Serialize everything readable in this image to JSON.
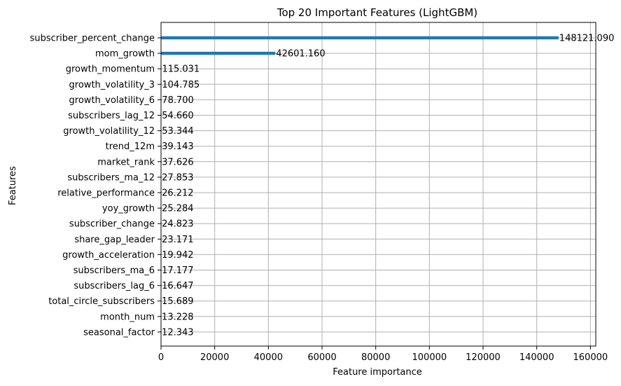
{
  "chart_data": {
    "type": "bar",
    "orientation": "horizontal",
    "title": "Top 20 Important Features (LightGBM)",
    "xlabel": "Feature importance",
    "ylabel": "Features",
    "xlim": [
      0,
      162000
    ],
    "xticks": [
      0,
      20000,
      40000,
      60000,
      80000,
      100000,
      120000,
      140000,
      160000
    ],
    "grid": true,
    "bar_color": "#1f77b4",
    "categories": [
      "subscriber_percent_change",
      "mom_growth",
      "growth_momentum",
      "growth_volatility_3",
      "growth_volatility_6",
      "subscribers_lag_12",
      "growth_volatility_12",
      "trend_12m",
      "market_rank",
      "subscribers_ma_12",
      "relative_performance",
      "yoy_growth",
      "subscriber_change",
      "share_gap_leader",
      "growth_acceleration",
      "subscribers_ma_6",
      "subscribers_lag_6",
      "total_circle_subscribers",
      "month_num",
      "seasonal_factor"
    ],
    "values": [
      148121.09,
      42601.16,
      115.031,
      104.785,
      78.7,
      54.66,
      53.344,
      39.143,
      37.626,
      27.853,
      26.212,
      25.284,
      24.823,
      23.171,
      19.942,
      17.177,
      16.647,
      15.689,
      13.228,
      12.343
    ],
    "value_labels": [
      "148121.090",
      "42601.160",
      "115.031",
      "104.785",
      "78.700",
      "54.660",
      "53.344",
      "39.143",
      "37.626",
      "27.853",
      "26.212",
      "25.284",
      "24.823",
      "23.171",
      "19.942",
      "17.177",
      "16.647",
      "15.689",
      "13.228",
      "12.343"
    ]
  }
}
